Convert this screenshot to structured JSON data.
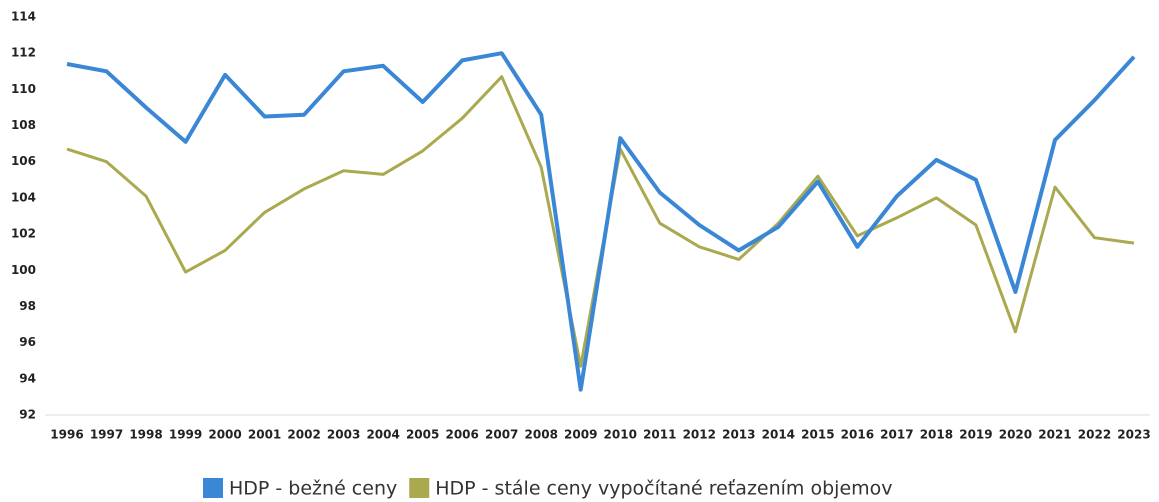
{
  "chart_data": {
    "type": "line",
    "categories": [
      "1996",
      "1997",
      "1998",
      "1999",
      "2000",
      "2001",
      "2002",
      "2003",
      "2004",
      "2005",
      "2006",
      "2007",
      "2008",
      "2009",
      "2010",
      "2011",
      "2012",
      "2013",
      "2014",
      "2015",
      "2016",
      "2017",
      "2018",
      "2019",
      "2020",
      "2021",
      "2022",
      "2023"
    ],
    "series": [
      {
        "name": "HDP - bežné ceny",
        "color": "#3a87d6",
        "values": [
          111.4,
          111.0,
          109.0,
          107.1,
          110.8,
          108.5,
          108.6,
          111.0,
          111.3,
          109.3,
          111.6,
          112.0,
          108.6,
          93.4,
          107.3,
          104.3,
          102.5,
          101.1,
          102.4,
          104.9,
          101.3,
          104.1,
          106.1,
          105.0,
          98.8,
          107.2,
          109.4,
          111.8
        ]
      },
      {
        "name": "HDP - stále ceny vypočítané reťazením objemov",
        "color": "#aaa94f",
        "values": [
          106.7,
          106.0,
          104.1,
          99.9,
          101.1,
          103.2,
          104.5,
          105.5,
          105.3,
          106.6,
          108.4,
          110.7,
          105.7,
          94.7,
          106.7,
          102.6,
          101.3,
          100.6,
          102.6,
          105.2,
          101.9,
          102.9,
          104.0,
          102.5,
          96.6,
          104.6,
          101.8,
          101.5
        ]
      }
    ],
    "ylim": [
      92,
      114
    ],
    "yticks": [
      92,
      94,
      96,
      98,
      100,
      102,
      104,
      106,
      108,
      110,
      112,
      114
    ],
    "grid": false
  }
}
